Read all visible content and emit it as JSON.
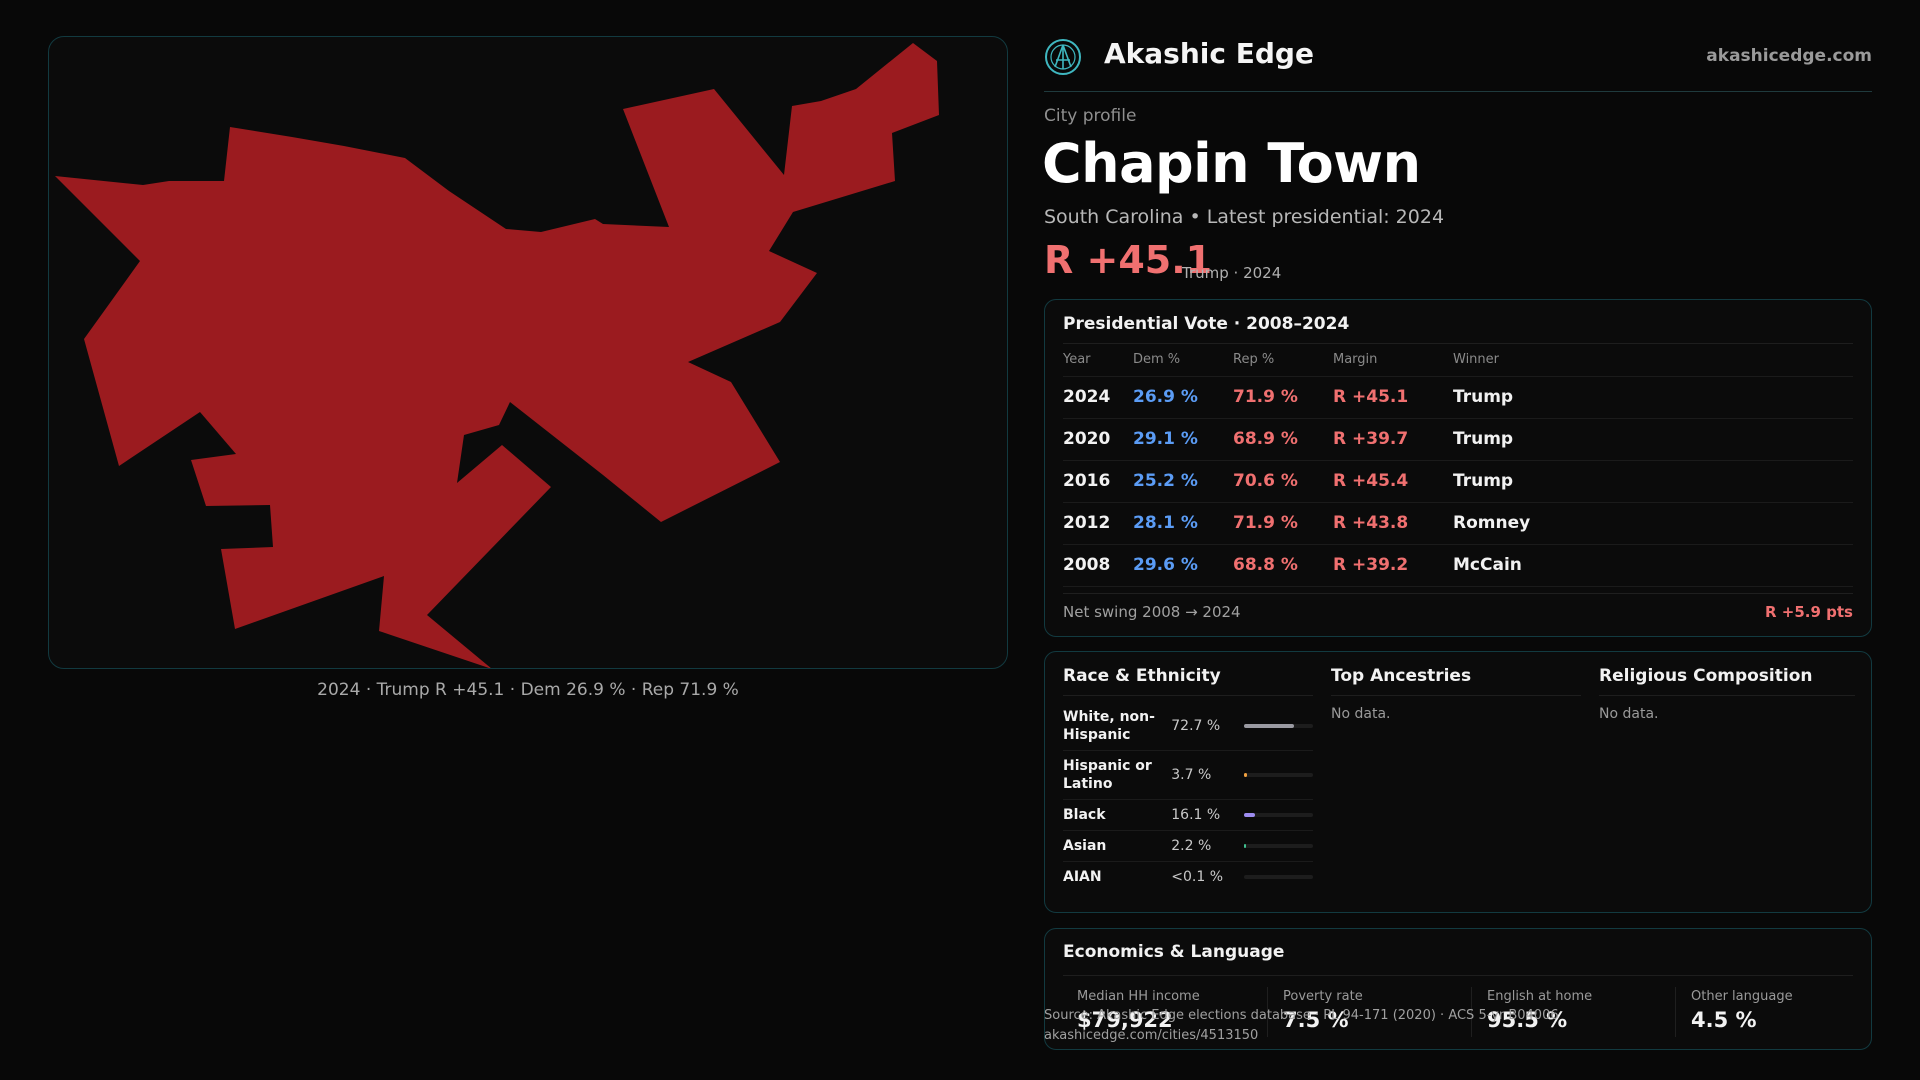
{
  "brand": {
    "name": "Akashic Edge",
    "url": "akashicedge.com",
    "logo_icon": "akashic-edge-logo-icon",
    "accent": "#3fb7c0"
  },
  "map": {
    "caption": "2024 · Trump R +45.1 · Dem 26.9 % · Rep 71.9 %",
    "fill_color": "#9b1b1f"
  },
  "profile": {
    "kicker": "City profile",
    "title": "Chapin Town",
    "subtitle": "South Carolina • Latest presidential: 2024",
    "margin": "R +45.1",
    "margin_note": "Trump · 2024"
  },
  "presidential": {
    "title": "Presidential Vote · 2008–2024",
    "columns": [
      "Year",
      "Dem %",
      "Rep %",
      "Margin",
      "Winner"
    ],
    "rows": [
      {
        "year": "2024",
        "dem": "26.9 %",
        "rep": "71.9 %",
        "margin": "R +45.1",
        "winner": "Trump"
      },
      {
        "year": "2020",
        "dem": "29.1 %",
        "rep": "68.9 %",
        "margin": "R +39.7",
        "winner": "Trump"
      },
      {
        "year": "2016",
        "dem": "25.2 %",
        "rep": "70.6 %",
        "margin": "R +45.4",
        "winner": "Trump"
      },
      {
        "year": "2012",
        "dem": "28.1 %",
        "rep": "71.9 %",
        "margin": "R +43.8",
        "winner": "Romney"
      },
      {
        "year": "2008",
        "dem": "29.6 %",
        "rep": "68.8 %",
        "margin": "R +39.2",
        "winner": "McCain"
      }
    ],
    "net_swing_label": "Net swing 2008 → 2024",
    "net_swing_value": "R +5.9 pts"
  },
  "race": {
    "title": "Race & Ethnicity",
    "rows": [
      {
        "label": "White, non-Hispanic",
        "pct": "72.7 %",
        "share": 0.727,
        "color": "#9a9aa2"
      },
      {
        "label": "Hispanic or Latino",
        "pct": "3.7 %",
        "share": 0.037,
        "color": "#f0a040"
      },
      {
        "label": "Black",
        "pct": "16.1 %",
        "share": 0.161,
        "color": "#9d8cf0"
      },
      {
        "label": "Asian",
        "pct": "2.2 %",
        "share": 0.022,
        "color": "#40c090"
      },
      {
        "label": "AIAN",
        "pct": "<0.1 %",
        "share": 0.0,
        "color": "#c06060"
      }
    ]
  },
  "ancestries": {
    "title": "Top Ancestries",
    "empty": "No data."
  },
  "religion": {
    "title": "Religious Composition",
    "empty": "No data."
  },
  "economics": {
    "title": "Economics & Language",
    "metrics": [
      {
        "label": "Median HH income",
        "value": "$79,922"
      },
      {
        "label": "Poverty rate",
        "value": "7.5 %"
      },
      {
        "label": "English at home",
        "value": "95.5 %"
      },
      {
        "label": "Other language",
        "value": "4.5 %"
      }
    ]
  },
  "footer": {
    "source": "Source: Akashic Edge elections database · PL 94-171 (2020) · ACS 5-yr B04006",
    "link": "akashicedge.com/cities/4513150"
  }
}
